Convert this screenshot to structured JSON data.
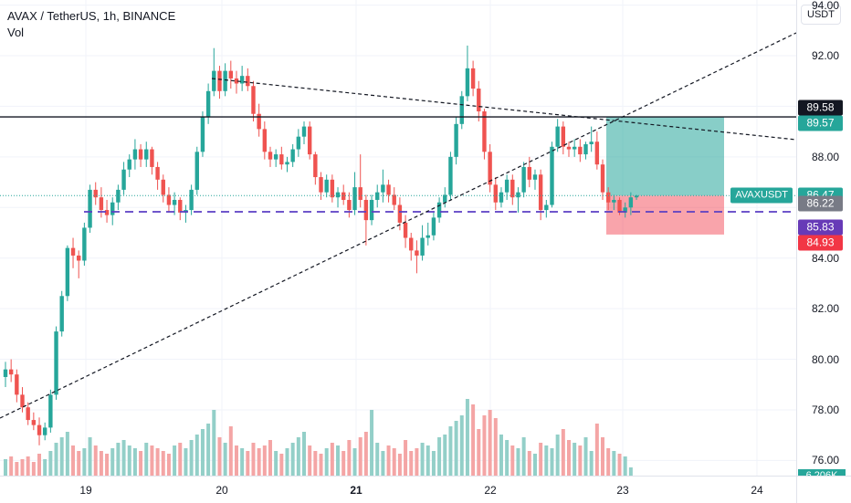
{
  "legend": {
    "title": "AVAX / TetherUS, 1h, BINANCE",
    "volume_label": "Vol"
  },
  "currency_button": "USDT",
  "symbol_tag": "AVAXUSDT",
  "price_ticks": [
    "94.00",
    "92.00",
    "88.00",
    "84.00",
    "82.00",
    "80.00",
    "78.00",
    "76.00"
  ],
  "time_ticks": [
    {
      "label": "19",
      "bold": false
    },
    {
      "label": "20",
      "bold": false
    },
    {
      "label": "21",
      "bold": true
    },
    {
      "label": "22",
      "bold": false
    },
    {
      "label": "23",
      "bold": false
    },
    {
      "label": "24",
      "bold": false
    }
  ],
  "price_tags": [
    {
      "value": "89.58",
      "bg": "#131722"
    },
    {
      "value": "89.57",
      "bg": "#26a69a"
    },
    {
      "value": "86.47",
      "bg": "#26a69a"
    },
    {
      "value": "86.22",
      "bg": "#787b86"
    },
    {
      "value": "85.83",
      "bg": "#673ab7"
    },
    {
      "value": "84.93",
      "bg": "#f23645"
    }
  ],
  "volume_tag": "6.206K",
  "colors": {
    "up": "#26a69a",
    "down": "#ef5350",
    "up_vol": "#93cfc8",
    "down_vol": "#f4a5a5"
  },
  "chart_data": {
    "type": "candlestick",
    "symbol": "AVAX / TetherUS",
    "interval": "1h",
    "exchange": "BINANCE",
    "last_price": 86.47,
    "horizontal_levels": {
      "resistance": 89.58,
      "support_dashed": 85.83
    },
    "long_position": {
      "entry": 86.47,
      "target": 89.57,
      "stop": 84.93
    },
    "ylim": [
      75.3,
      94.3
    ],
    "candles": [
      [
        79.3,
        79.9,
        78.9,
        79.6
      ],
      [
        79.6,
        80.0,
        79.1,
        79.4
      ],
      [
        79.4,
        79.6,
        78.3,
        78.6
      ],
      [
        78.6,
        78.9,
        77.9,
        78.1
      ],
      [
        78.1,
        78.3,
        77.4,
        77.6
      ],
      [
        77.6,
        77.9,
        77.2,
        77.4
      ],
      [
        77.4,
        77.7,
        76.6,
        77.0
      ],
      [
        77.0,
        77.5,
        76.8,
        77.3
      ],
      [
        77.3,
        78.8,
        77.1,
        78.6
      ],
      [
        78.6,
        81.3,
        78.4,
        81.1
      ],
      [
        81.1,
        82.7,
        80.9,
        82.5
      ],
      [
        82.5,
        84.5,
        82.3,
        84.4
      ],
      [
        84.4,
        84.8,
        83.6,
        84.1
      ],
      [
        84.1,
        84.3,
        83.2,
        83.9
      ],
      [
        83.9,
        85.4,
        83.7,
        85.2
      ],
      [
        85.2,
        86.9,
        85.0,
        86.7
      ],
      [
        86.7,
        87.0,
        86.1,
        86.4
      ],
      [
        86.4,
        86.8,
        85.6,
        85.9
      ],
      [
        85.9,
        86.3,
        85.4,
        85.7
      ],
      [
        85.7,
        86.4,
        85.3,
        86.2
      ],
      [
        86.2,
        86.9,
        85.9,
        86.7
      ],
      [
        86.7,
        87.8,
        86.5,
        87.5
      ],
      [
        87.5,
        88.1,
        87.2,
        87.9
      ],
      [
        87.9,
        88.7,
        87.5,
        88.3
      ],
      [
        88.3,
        88.5,
        87.6,
        87.9
      ],
      [
        87.9,
        88.6,
        87.6,
        88.3
      ],
      [
        88.3,
        88.4,
        87.3,
        87.6
      ],
      [
        87.6,
        87.8,
        86.7,
        87.1
      ],
      [
        87.1,
        87.3,
        86.2,
        86.5
      ],
      [
        86.5,
        86.8,
        85.8,
        86.1
      ],
      [
        86.1,
        86.6,
        85.7,
        86.3
      ],
      [
        86.3,
        86.4,
        85.5,
        85.8
      ],
      [
        85.8,
        86.1,
        85.4,
        85.9
      ],
      [
        85.9,
        86.9,
        85.7,
        86.7
      ],
      [
        86.7,
        88.4,
        86.5,
        88.2
      ],
      [
        88.2,
        89.8,
        88.0,
        89.6
      ],
      [
        89.6,
        90.9,
        89.3,
        90.6
      ],
      [
        90.6,
        92.3,
        90.4,
        91.4
      ],
      [
        91.4,
        91.6,
        90.3,
        90.6
      ],
      [
        90.6,
        91.7,
        90.4,
        91.4
      ],
      [
        91.4,
        91.8,
        90.7,
        91.1
      ],
      [
        91.1,
        91.4,
        90.5,
        90.9
      ],
      [
        90.9,
        91.6,
        90.6,
        91.2
      ],
      [
        91.2,
        91.5,
        90.6,
        90.8
      ],
      [
        90.8,
        91.0,
        89.4,
        89.7
      ],
      [
        89.7,
        90.1,
        88.8,
        89.1
      ],
      [
        89.1,
        89.4,
        87.9,
        88.2
      ],
      [
        88.2,
        88.4,
        87.6,
        87.9
      ],
      [
        87.9,
        88.3,
        87.6,
        88.1
      ],
      [
        88.1,
        88.4,
        87.5,
        87.7
      ],
      [
        87.7,
        88.0,
        87.4,
        87.8
      ],
      [
        87.8,
        88.5,
        87.6,
        88.3
      ],
      [
        88.3,
        89.1,
        88.0,
        88.8
      ],
      [
        88.8,
        89.4,
        88.5,
        89.2
      ],
      [
        89.2,
        89.4,
        87.9,
        88.1
      ],
      [
        88.1,
        88.2,
        86.9,
        87.2
      ],
      [
        87.2,
        87.4,
        86.3,
        86.6
      ],
      [
        86.6,
        87.3,
        86.4,
        87.1
      ],
      [
        87.1,
        87.3,
        86.2,
        86.4
      ],
      [
        86.4,
        86.8,
        86.0,
        86.6
      ],
      [
        86.6,
        86.9,
        86.1,
        86.3
      ],
      [
        86.3,
        86.6,
        85.6,
        85.9
      ],
      [
        85.9,
        87.4,
        85.7,
        86.8
      ],
      [
        86.8,
        88.1,
        86.0,
        86.3
      ],
      [
        86.3,
        86.5,
        84.5,
        85.5
      ],
      [
        85.5,
        86.5,
        85.3,
        86.3
      ],
      [
        86.3,
        86.9,
        86.0,
        86.6
      ],
      [
        86.6,
        87.5,
        86.2,
        86.9
      ],
      [
        86.9,
        87.1,
        86.2,
        86.5
      ],
      [
        86.5,
        86.8,
        85.9,
        86.1
      ],
      [
        86.1,
        86.4,
        85.1,
        85.4
      ],
      [
        85.4,
        85.7,
        84.4,
        84.8
      ],
      [
        84.8,
        85.0,
        83.9,
        84.3
      ],
      [
        84.3,
        84.7,
        83.4,
        84.1
      ],
      [
        84.1,
        85.3,
        83.9,
        84.8
      ],
      [
        84.8,
        85.4,
        84.5,
        84.9
      ],
      [
        84.9,
        85.8,
        84.7,
        85.6
      ],
      [
        85.6,
        86.4,
        85.4,
        86.2
      ],
      [
        86.2,
        86.8,
        86.0,
        86.5
      ],
      [
        86.5,
        88.2,
        86.3,
        88.0
      ],
      [
        88.0,
        89.6,
        87.7,
        89.3
      ],
      [
        89.3,
        90.6,
        89.1,
        90.4
      ],
      [
        90.4,
        92.4,
        90.2,
        91.5
      ],
      [
        91.5,
        91.8,
        90.4,
        90.7
      ],
      [
        90.7,
        91.0,
        89.4,
        89.8
      ],
      [
        89.8,
        89.9,
        87.9,
        88.2
      ],
      [
        88.2,
        88.5,
        86.6,
        86.9
      ],
      [
        86.9,
        87.2,
        85.9,
        86.2
      ],
      [
        86.2,
        86.8,
        86.0,
        86.6
      ],
      [
        86.6,
        87.3,
        86.3,
        87.1
      ],
      [
        87.1,
        87.3,
        86.1,
        86.4
      ],
      [
        86.4,
        86.8,
        85.8,
        86.6
      ],
      [
        86.6,
        87.8,
        86.4,
        87.6
      ],
      [
        87.6,
        88.0,
        86.8,
        87.1
      ],
      [
        87.1,
        87.5,
        86.7,
        87.3
      ],
      [
        87.3,
        87.5,
        85.5,
        85.9
      ],
      [
        85.9,
        86.3,
        85.6,
        86.1
      ],
      [
        86.1,
        88.6,
        86.0,
        88.4
      ],
      [
        88.4,
        89.5,
        88.2,
        89.2
      ],
      [
        89.2,
        89.4,
        88.1,
        88.4
      ],
      [
        88.4,
        88.6,
        88.0,
        88.3
      ],
      [
        88.3,
        88.7,
        88.0,
        88.4
      ],
      [
        88.4,
        88.7,
        87.8,
        88.1
      ],
      [
        88.1,
        88.6,
        87.9,
        88.5
      ],
      [
        88.5,
        89.2,
        88.2,
        88.6
      ],
      [
        88.6,
        89.0,
        87.5,
        87.7
      ],
      [
        87.7,
        87.9,
        86.3,
        86.6
      ],
      [
        86.6,
        86.8,
        85.9,
        86.2
      ],
      [
        86.2,
        86.5,
        85.9,
        86.3
      ],
      [
        86.3,
        86.4,
        85.7,
        85.8
      ],
      [
        85.8,
        86.2,
        85.6,
        86.0
      ],
      [
        86.0,
        86.6,
        85.7,
        86.4
      ],
      [
        86.4,
        86.5,
        86.3,
        86.47
      ]
    ],
    "volume": [
      6,
      7,
      5,
      6,
      7,
      5,
      8,
      6,
      9,
      12,
      14,
      16,
      11,
      9,
      10,
      14,
      11,
      9,
      8,
      10,
      12,
      13,
      11,
      10,
      9,
      12,
      11,
      10,
      9,
      8,
      11,
      12,
      10,
      13,
      15,
      17,
      19,
      24,
      14,
      12,
      18,
      11,
      10,
      9,
      12,
      10,
      11,
      13,
      9,
      8,
      10,
      12,
      14,
      16,
      11,
      9,
      8,
      10,
      12,
      11,
      9,
      13,
      10,
      14,
      16,
      24,
      12,
      9,
      11,
      10,
      8,
      13,
      9,
      10,
      12,
      11,
      9,
      14,
      15,
      18,
      20,
      22,
      28,
      26,
      17,
      22,
      24,
      21,
      15,
      13,
      11,
      10,
      14,
      9,
      8,
      12,
      11,
      10,
      15,
      17,
      13,
      12,
      11,
      14,
      9,
      19,
      14,
      10,
      9,
      8,
      7,
      3
    ]
  }
}
